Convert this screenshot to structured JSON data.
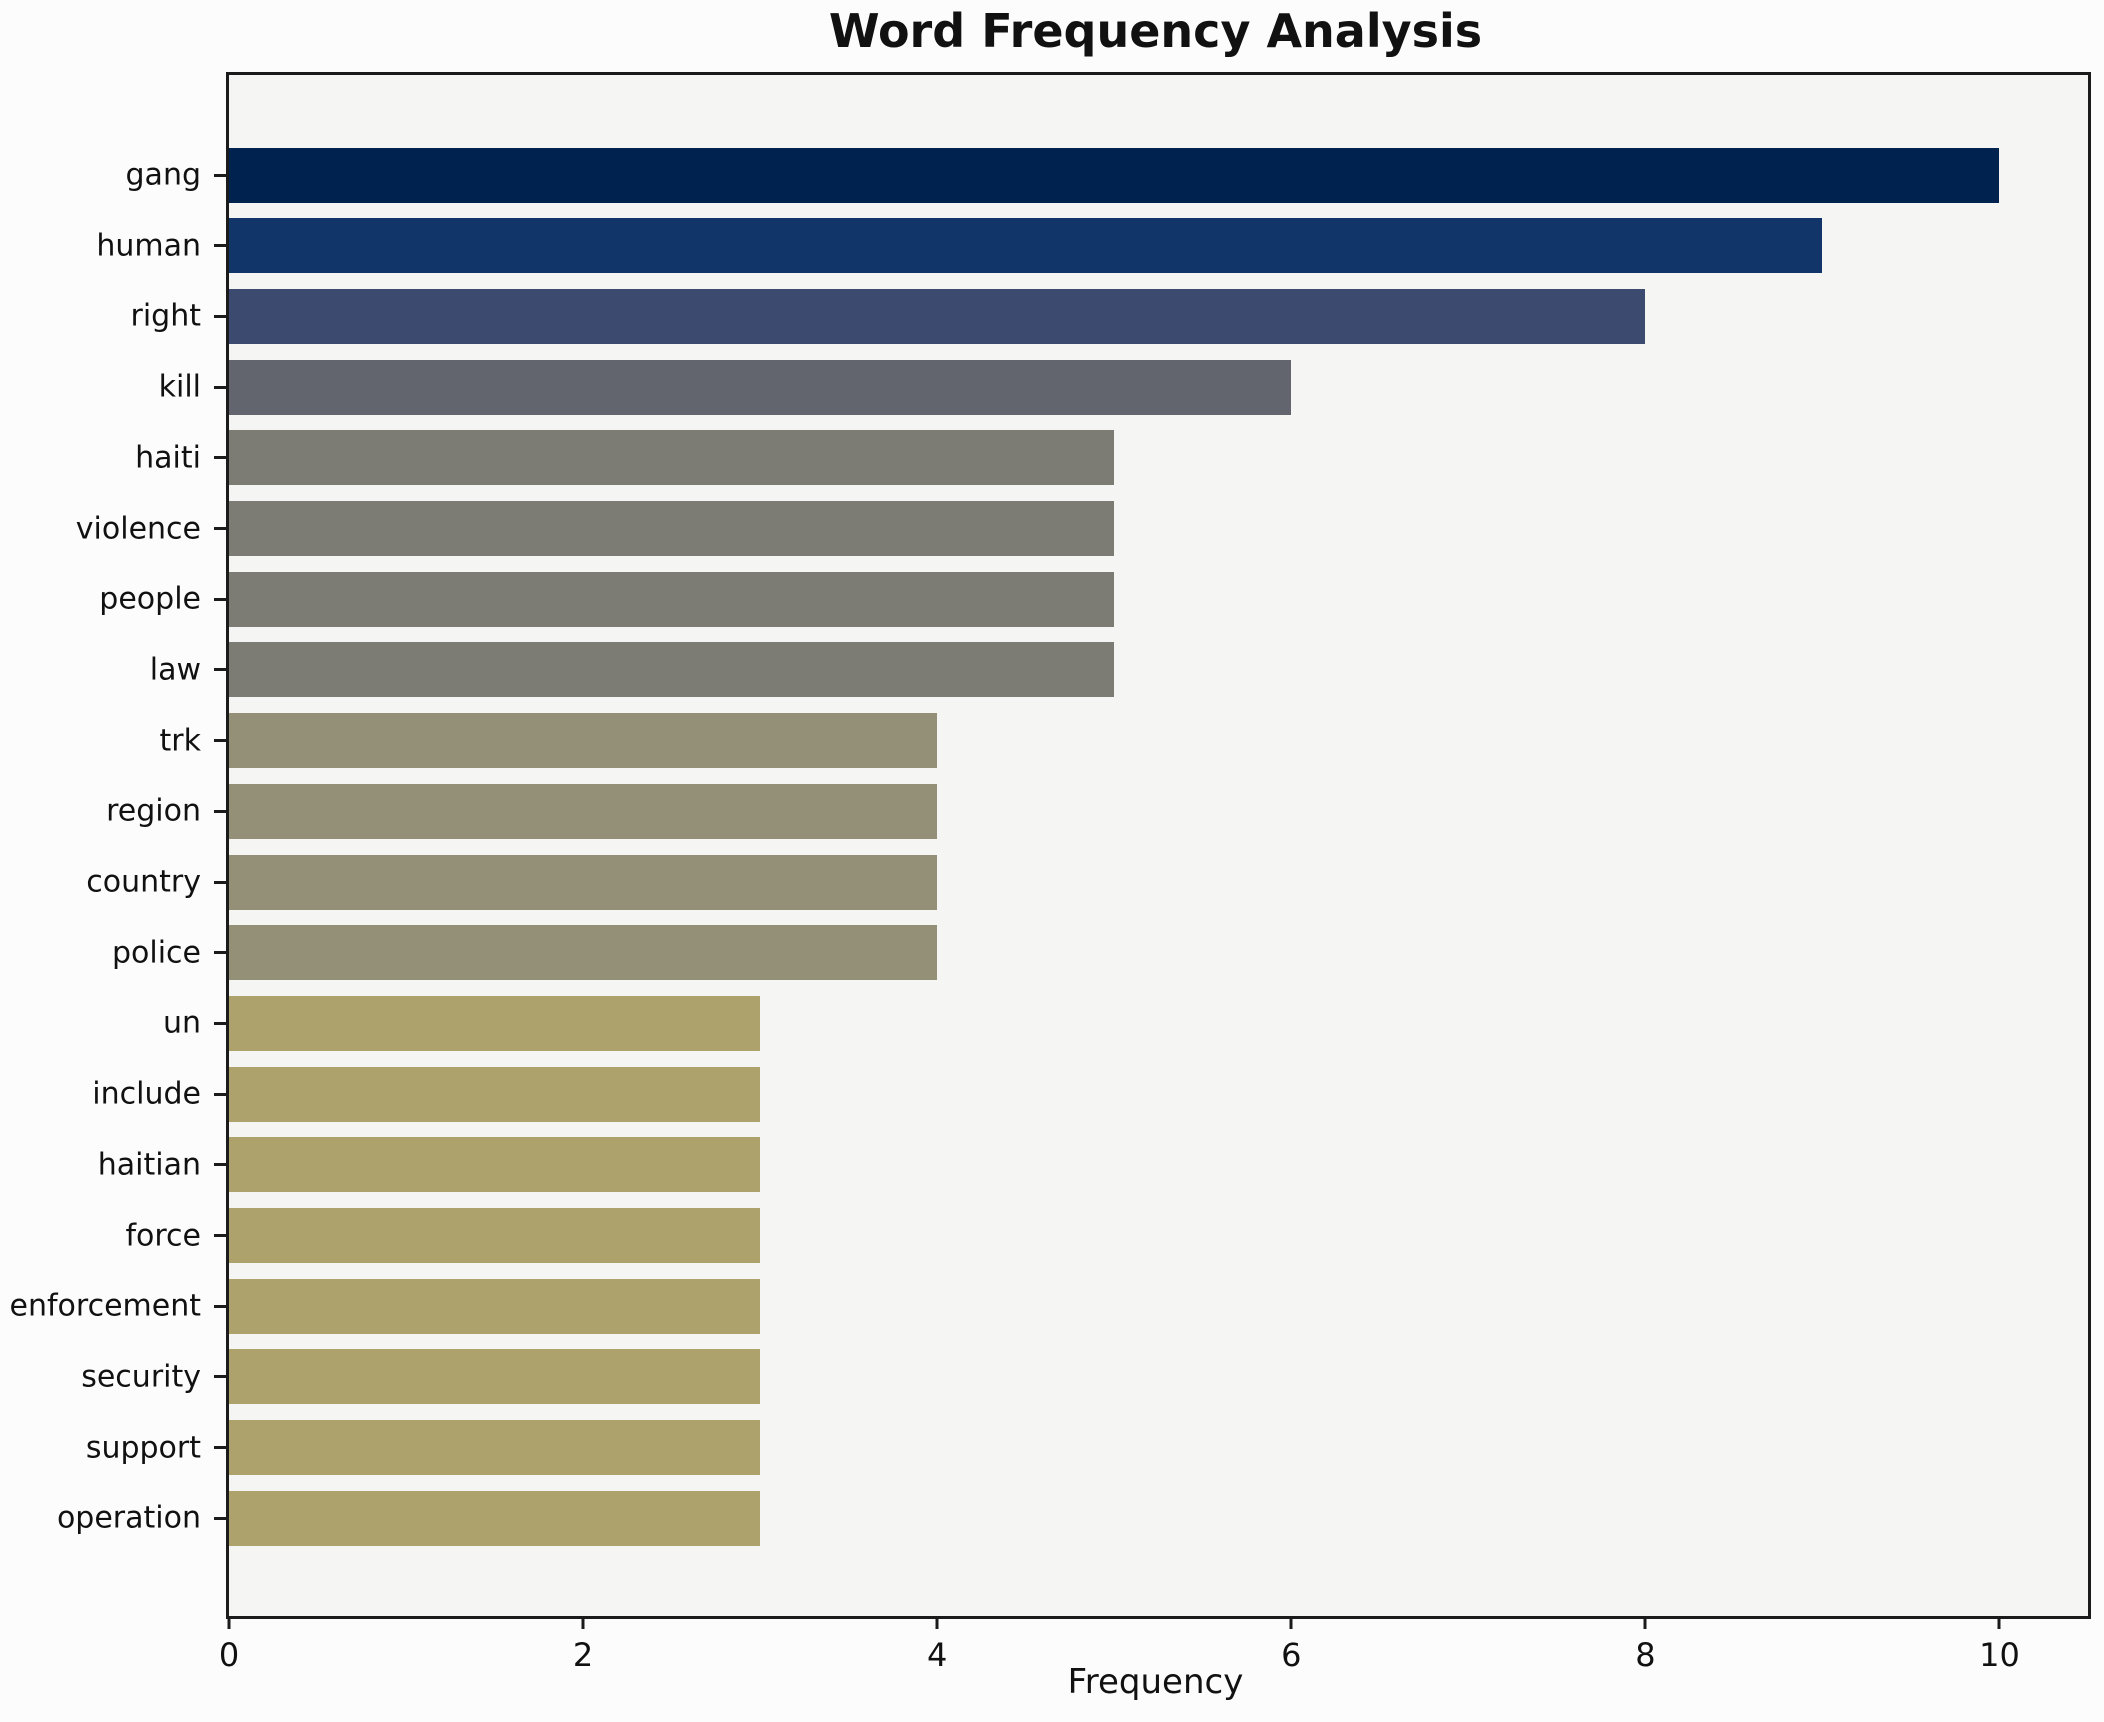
{
  "chart_data": {
    "type": "bar",
    "orientation": "horizontal",
    "title": "Word Frequency Analysis",
    "xlabel": "Frequency",
    "ylabel": "",
    "categories": [
      "gang",
      "human",
      "right",
      "kill",
      "haiti",
      "violence",
      "people",
      "law",
      "trk",
      "region",
      "country",
      "police",
      "un",
      "include",
      "haitian",
      "force",
      "enforcement",
      "security",
      "support",
      "operation"
    ],
    "values": [
      10,
      9,
      8,
      6,
      5,
      5,
      5,
      5,
      4,
      4,
      4,
      4,
      3,
      3,
      3,
      3,
      3,
      3,
      3,
      3
    ],
    "bar_colors": [
      "#00224e",
      "#123569",
      "#3b4a6e",
      "#63656e",
      "#7c7b74",
      "#7c7b74",
      "#7c7b74",
      "#7c7b74",
      "#948f77",
      "#948f77",
      "#948f77",
      "#948f77",
      "#ada26b",
      "#ada26b",
      "#ada26b",
      "#ada26b",
      "#ada26b",
      "#ada26b",
      "#ada26b",
      "#ada26b"
    ],
    "xlim": [
      0,
      10.5
    ],
    "xticks": [
      0,
      2,
      4,
      6,
      8,
      10
    ],
    "grid": false,
    "legend_position": "none",
    "plot_background": "#f5f5f3",
    "figure_background": "#fcfcfc",
    "spine_color": "#1b1b1b"
  }
}
